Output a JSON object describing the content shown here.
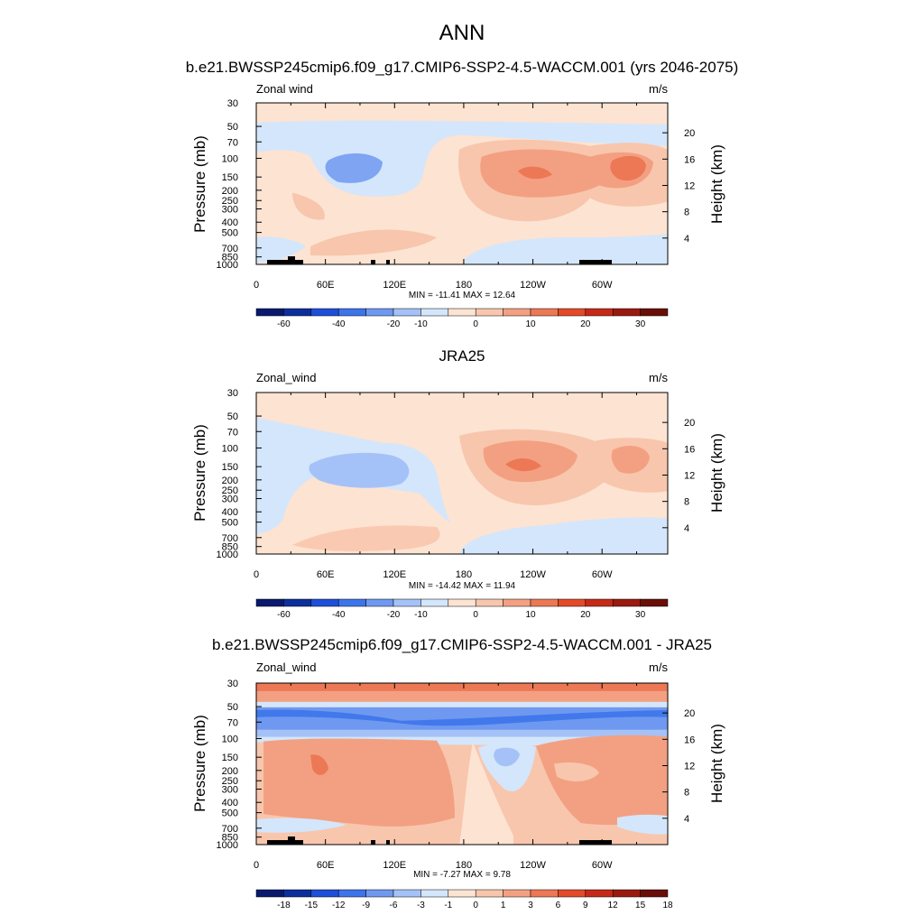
{
  "title": "ANN",
  "panels": [
    {
      "subtitle": "b.e21.BWSSP245cmip6.f09_g17.CMIP6-SSP2-4.5-WACCM.001 (yrs 2046-2075)",
      "left_label": "Zonal wind",
      "units": "m/s",
      "stats": "MIN = -11.41  MAX =  12.64",
      "y_pressure_label": "Pressure (mb)",
      "y_height_label": "Height (km)",
      "colorbar_labels": [
        "-60",
        "-40",
        "-20",
        "-10",
        "0",
        "10",
        "20",
        "30"
      ]
    },
    {
      "subtitle": "JRA25",
      "left_label": "Zonal_wind",
      "units": "m/s",
      "stats": "MIN = -14.42  MAX =  11.94",
      "y_pressure_label": "Pressure (mb)",
      "y_height_label": "Height (km)",
      "colorbar_labels": [
        "-60",
        "-40",
        "-20",
        "-10",
        "0",
        "10",
        "20",
        "30"
      ]
    },
    {
      "subtitle": "b.e21.BWSSP245cmip6.f09_g17.CMIP6-SSP2-4.5-WACCM.001 - JRA25",
      "left_label": "Zonal_wind",
      "units": "m/s",
      "stats": "MIN =  -7.27  MAX =   9.78",
      "y_pressure_label": "Pressure (mb)",
      "y_height_label": "Height (km)",
      "colorbar_labels": [
        "-18",
        "-15",
        "-12",
        "-9",
        "-6",
        "-3",
        "-1",
        "0",
        "1",
        "3",
        "6",
        "9",
        "12",
        "15",
        "18"
      ]
    }
  ],
  "chart_data": [
    {
      "type": "heatmap",
      "title": "b.e21.BWSSP245cmip6.f09_g17.CMIP6-SSP2-4.5-WACCM.001 (yrs 2046-2075)",
      "variable": "Zonal wind",
      "units": "m/s",
      "x_ticks": [
        "0",
        "60E",
        "120E",
        "180",
        "120W",
        "60W"
      ],
      "x_range_deg_east": [
        0,
        357
      ],
      "y_pressure_ticks_mb": [
        30,
        50,
        70,
        100,
        150,
        200,
        250,
        300,
        400,
        500,
        700,
        850,
        1000
      ],
      "y_height_ticks_km": [
        4,
        8,
        12,
        16,
        20
      ],
      "y_scale": "log",
      "y_range_mb": [
        1000,
        30
      ],
      "levels": [
        -60,
        -50,
        -40,
        -30,
        -20,
        -15,
        -10,
        -5,
        0,
        5,
        10,
        15,
        20,
        25,
        30
      ],
      "colorbar_ticks": [
        -60,
        -40,
        -20,
        -10,
        0,
        10,
        20,
        30
      ],
      "min": -11.41,
      "max": 12.64
    },
    {
      "type": "heatmap",
      "title": "JRA25",
      "variable": "Zonal_wind",
      "units": "m/s",
      "x_ticks": [
        "0",
        "60E",
        "120E",
        "180",
        "120W",
        "60W"
      ],
      "x_range_deg_east": [
        0,
        357
      ],
      "y_pressure_ticks_mb": [
        30,
        50,
        70,
        100,
        150,
        200,
        250,
        300,
        400,
        500,
        700,
        850,
        1000
      ],
      "y_height_ticks_km": [
        4,
        8,
        12,
        16,
        20
      ],
      "y_scale": "log",
      "y_range_mb": [
        1000,
        30
      ],
      "levels": [
        -60,
        -50,
        -40,
        -30,
        -20,
        -15,
        -10,
        -5,
        0,
        5,
        10,
        15,
        20,
        25,
        30
      ],
      "colorbar_ticks": [
        -60,
        -40,
        -20,
        -10,
        0,
        10,
        20,
        30
      ],
      "min": -14.42,
      "max": 11.94
    },
    {
      "type": "heatmap",
      "title": "b.e21.BWSSP245cmip6.f09_g17.CMIP6-SSP2-4.5-WACCM.001 - JRA25",
      "variable": "Zonal_wind",
      "units": "m/s",
      "x_ticks": [
        "0",
        "60E",
        "120E",
        "180",
        "120W",
        "60W"
      ],
      "x_range_deg_east": [
        0,
        357
      ],
      "y_pressure_ticks_mb": [
        30,
        50,
        70,
        100,
        150,
        200,
        250,
        300,
        400,
        500,
        700,
        850,
        1000
      ],
      "y_height_ticks_km": [
        4,
        8,
        12,
        16,
        20
      ],
      "y_scale": "log",
      "y_range_mb": [
        1000,
        30
      ],
      "levels": [
        -18,
        -15,
        -12,
        -9,
        -6,
        -3,
        -1,
        0,
        1,
        3,
        6,
        9,
        12,
        15,
        18
      ],
      "colorbar_ticks": [
        -18,
        -15,
        -12,
        -9,
        -6,
        -3,
        -1,
        0,
        1,
        3,
        6,
        9,
        12,
        15,
        18
      ],
      "min": -7.27,
      "max": 9.78
    }
  ],
  "colors": {
    "palette": [
      "#08196e",
      "#0c2f9c",
      "#1e4fd8",
      "#3c74ea",
      "#6f98f0",
      "#a4c2f7",
      "#d4e6fb",
      "#fde3d2",
      "#f8c6ad",
      "#f3a082",
      "#ed7855",
      "#e34a28",
      "#c52a18",
      "#9b1a10",
      "#6a0e08"
    ]
  }
}
